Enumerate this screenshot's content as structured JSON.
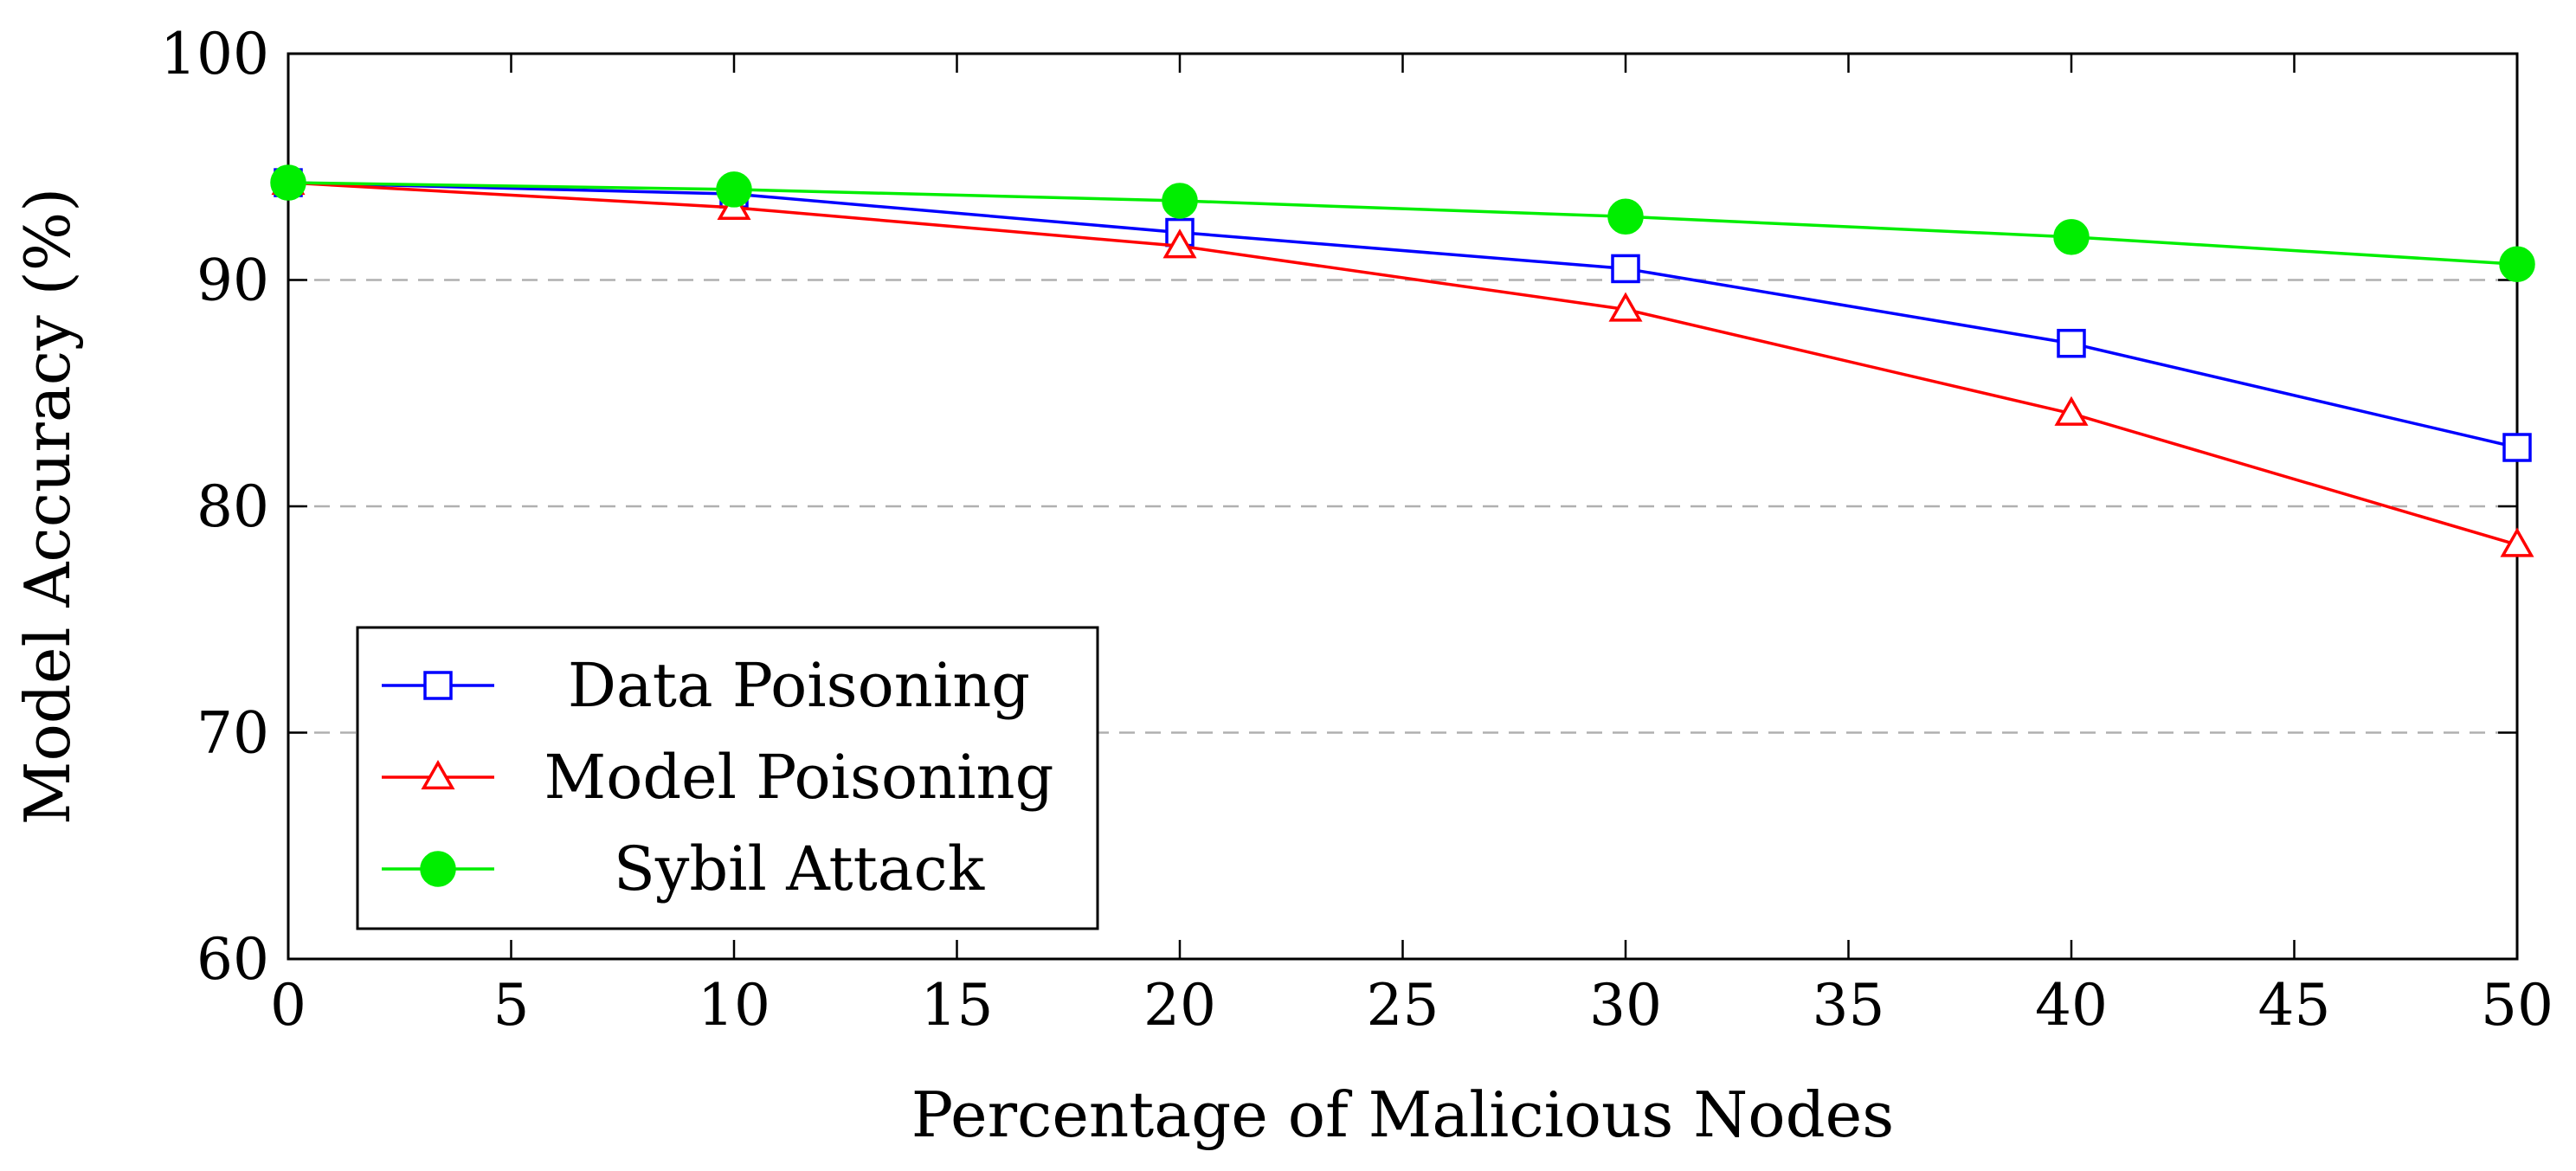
{
  "chart_data": {
    "type": "line",
    "title": "",
    "xlabel": "Percentage of Malicious Nodes",
    "ylabel": "Model Accuracy (%)",
    "xlim": [
      0,
      50
    ],
    "ylim": [
      60,
      100
    ],
    "xticks": [
      0,
      5,
      10,
      15,
      20,
      25,
      30,
      35,
      40,
      45,
      50
    ],
    "xtick_labels": [
      "0",
      "5",
      "10",
      "15",
      "20",
      "25",
      "30",
      "35",
      "40",
      "45",
      "50"
    ],
    "yticks": [
      60,
      70,
      80,
      90,
      100
    ],
    "ytick_labels": [
      "60",
      "70",
      "80",
      "90",
      "100"
    ],
    "grid": "horizontal dashed",
    "legend_position": "bottom-left",
    "x": [
      0,
      10,
      20,
      30,
      40,
      50
    ],
    "series": [
      {
        "name": "Data Poisoning",
        "color": "#0000ff",
        "marker": "square-open",
        "values": [
          94.3,
          93.8,
          92.1,
          90.5,
          87.2,
          82.6
        ]
      },
      {
        "name": "Model Poisoning",
        "color": "#ff0000",
        "marker": "triangle-open",
        "values": [
          94.3,
          93.2,
          91.5,
          88.7,
          84.1,
          78.3
        ]
      },
      {
        "name": "Sybil Attack",
        "color": "#00ee00",
        "marker": "circle-filled",
        "values": [
          94.3,
          94.0,
          93.5,
          92.8,
          91.9,
          90.7
        ]
      }
    ]
  }
}
